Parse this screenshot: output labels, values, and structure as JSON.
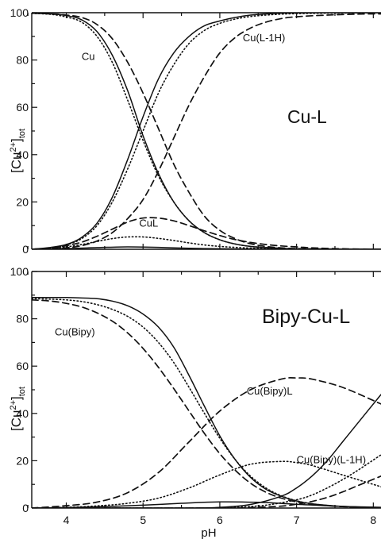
{
  "chart_data": [
    {
      "type": "line",
      "panel": "Cu-L",
      "title": "Cu-L",
      "xlabel": "",
      "ylabel": "[Cu2+]tot",
      "ylabel_main": "[Cu",
      "ylabel_sup": "2+",
      "ylabel_close": "]",
      "ylabel_sub": "tot",
      "xlim": [
        3.55,
        8.1
      ],
      "ylim": [
        0,
        100
      ],
      "yticks": [
        0,
        20,
        40,
        60,
        80,
        100
      ],
      "ytick_labels": [
        "0",
        "20",
        "40",
        "60",
        "80",
        "100"
      ],
      "xticks": [
        4,
        5,
        6,
        7,
        8
      ],
      "annotations": [
        {
          "text": "Cu",
          "x": 4.2,
          "y": 80
        },
        {
          "text": "Cu(L-1H)",
          "x": 6.3,
          "y": 88
        },
        {
          "text": "CuL",
          "x": 4.95,
          "y": 9.5
        }
      ],
      "series": [
        {
          "label": "Cu",
          "style": "solid",
          "x": [
            3.55,
            3.8,
            4.0,
            4.2,
            4.4,
            4.6,
            4.8,
            5.0,
            5.2,
            5.4,
            5.6,
            5.8,
            6.0,
            6.2,
            6.4,
            6.6,
            6.8,
            7.0,
            7.4,
            8.1
          ],
          "y": [
            99.8,
            99.5,
            98.8,
            97,
            92,
            82,
            67,
            48,
            32,
            20,
            12,
            7,
            4,
            2.2,
            1.2,
            0.7,
            0.4,
            0.2,
            0.1,
            0
          ]
        },
        {
          "label": "Cu",
          "style": "dotted",
          "x": [
            3.55,
            3.8,
            4.0,
            4.2,
            4.4,
            4.6,
            4.8,
            5.0,
            5.2,
            5.4,
            5.6,
            5.8,
            6.0,
            6.2,
            6.4,
            6.6,
            6.8,
            7.0,
            7.4,
            8.1
          ],
          "y": [
            99.7,
            99.3,
            98.2,
            96,
            90,
            79,
            63,
            46,
            31,
            20,
            12,
            7,
            4,
            2.2,
            1.2,
            0.7,
            0.4,
            0.2,
            0.1,
            0
          ]
        },
        {
          "label": "Cu",
          "style": "dashed",
          "x": [
            3.55,
            3.8,
            4.0,
            4.2,
            4.4,
            4.6,
            4.8,
            5.0,
            5.2,
            5.4,
            5.6,
            5.8,
            6.0,
            6.2,
            6.4,
            6.6,
            6.8,
            7.0,
            7.4,
            8.1
          ],
          "y": [
            99.8,
            99.5,
            99,
            98,
            95,
            89,
            79,
            66,
            51,
            36,
            24,
            14,
            8,
            4.5,
            2.3,
            1.2,
            0.6,
            0.3,
            0.1,
            0
          ]
        },
        {
          "label": "Cu(L-1H)",
          "style": "solid",
          "x": [
            3.55,
            3.8,
            4.0,
            4.2,
            4.4,
            4.6,
            4.8,
            5.0,
            5.2,
            5.4,
            5.6,
            5.8,
            6.0,
            6.2,
            6.4,
            6.6,
            6.8,
            7.0,
            7.4,
            7.8,
            8.1
          ],
          "y": [
            0,
            0.8,
            2,
            5,
            11,
            22,
            38,
            56,
            72,
            83,
            90,
            94.5,
            96.5,
            98,
            99,
            99.5,
            99.8,
            99.9,
            100,
            100,
            100
          ]
        },
        {
          "label": "Cu(L-1H)",
          "style": "dotted",
          "x": [
            3.55,
            3.8,
            4.0,
            4.2,
            4.4,
            4.6,
            4.8,
            5.0,
            5.2,
            5.4,
            5.6,
            5.8,
            6.0,
            6.2,
            6.4,
            6.6,
            6.8,
            7.0,
            7.4,
            7.8,
            8.1
          ],
          "y": [
            0,
            0.6,
            1.8,
            4.5,
            10,
            20,
            34,
            50,
            66,
            78,
            87,
            92.5,
            95.5,
            97.3,
            98.4,
            99,
            99.4,
            99.6,
            99.8,
            99.9,
            100
          ]
        },
        {
          "label": "Cu(L-1H)",
          "style": "dashed",
          "x": [
            3.55,
            3.8,
            4.0,
            4.2,
            4.4,
            4.6,
            4.8,
            5.0,
            5.2,
            5.4,
            5.6,
            5.8,
            6.0,
            6.2,
            6.4,
            6.6,
            6.8,
            7.0,
            7.4,
            7.8,
            8.1
          ],
          "y": [
            0,
            0.2,
            0.6,
            1.5,
            3.5,
            7,
            13,
            21,
            33,
            47,
            61,
            73,
            83,
            89.5,
            93.5,
            96,
            97.5,
            98.3,
            99,
            99.4,
            99.5
          ]
        },
        {
          "label": "CuL",
          "style": "solid",
          "x": [
            3.55,
            4.0,
            4.4,
            4.8,
            5.2,
            5.6,
            6.0,
            6.6,
            7.2,
            8.1
          ],
          "y": [
            0,
            0.3,
            0.7,
            1,
            0.8,
            0.4,
            0.2,
            0.05,
            0,
            0
          ]
        },
        {
          "label": "CuL",
          "style": "dotted",
          "x": [
            3.55,
            3.8,
            4.0,
            4.2,
            4.4,
            4.6,
            4.8,
            5.0,
            5.2,
            5.4,
            5.6,
            5.8,
            6.0,
            6.2,
            6.4,
            6.6,
            6.8,
            7.0,
            7.4,
            8.1
          ],
          "y": [
            0,
            0.3,
            1,
            2,
            3.3,
            4.5,
            5.2,
            5.2,
            4.6,
            3.7,
            2.7,
            1.8,
            1.2,
            0.8,
            0.5,
            0.3,
            0.2,
            0.1,
            0,
            0
          ]
        },
        {
          "label": "CuL",
          "style": "dashed",
          "x": [
            3.55,
            3.8,
            4.0,
            4.2,
            4.4,
            4.6,
            4.8,
            5.0,
            5.2,
            5.4,
            5.6,
            5.8,
            6.0,
            6.2,
            6.4,
            6.6,
            6.8,
            7.0,
            7.2,
            7.6,
            8.1
          ],
          "y": [
            0,
            0.5,
            1.5,
            3,
            5.5,
            8.5,
            11.5,
            13.2,
            13.2,
            12,
            10,
            7.8,
            5.8,
            4.1,
            2.9,
            2,
            1.4,
            1,
            0.6,
            0.2,
            0
          ]
        }
      ]
    },
    {
      "type": "line",
      "panel": "Bipy-Cu-L",
      "title": "Bipy-Cu-L",
      "xlabel": "pH",
      "ylabel": "[Cu2+]tot",
      "ylabel_main": "[Cu",
      "ylabel_sup": "2+",
      "ylabel_close": "]",
      "ylabel_sub": "tot",
      "xlim": [
        3.55,
        8.1
      ],
      "ylim": [
        0,
        100
      ],
      "yticks": [
        0,
        20,
        40,
        60,
        80,
        100
      ],
      "ytick_labels": [
        "0",
        "20",
        "40",
        "60",
        "80",
        "100"
      ],
      "xticks": [
        4,
        5,
        6,
        7,
        8
      ],
      "xtick_labels": [
        "4",
        "5",
        "6",
        "7",
        "8"
      ],
      "annotations": [
        {
          "text": "Cu(Bipy)",
          "x": 3.85,
          "y": 73
        },
        {
          "text": "Cu(Bipy)L",
          "x": 6.35,
          "y": 48
        },
        {
          "text": "Cu(Bipy)(L-1H)",
          "x": 7.0,
          "y": 19
        }
      ],
      "series": [
        {
          "label": "Cu(Bipy)",
          "style": "solid",
          "x": [
            3.55,
            3.8,
            4.0,
            4.2,
            4.4,
            4.6,
            4.8,
            5.0,
            5.2,
            5.4,
            5.6,
            5.8,
            6.0,
            6.2,
            6.4,
            6.6,
            6.8,
            7.0,
            7.2,
            7.6,
            8.1
          ],
          "y": [
            89,
            89,
            89,
            88.8,
            88.5,
            87.5,
            85.5,
            82,
            76.5,
            68,
            56,
            43,
            30.5,
            20.5,
            13,
            8,
            5,
            3,
            1.8,
            0.7,
            0.2
          ]
        },
        {
          "label": "Cu(Bipy)",
          "style": "dotted",
          "x": [
            3.55,
            3.8,
            4.0,
            4.2,
            4.4,
            4.6,
            4.8,
            5.0,
            5.2,
            5.4,
            5.6,
            5.8,
            6.0,
            6.2,
            6.4,
            6.6,
            6.8,
            7.0,
            7.2,
            7.6,
            8.1
          ],
          "y": [
            88.5,
            88.3,
            88,
            87.3,
            86,
            84,
            81,
            76.5,
            70,
            61.5,
            51,
            40,
            29.5,
            20.5,
            13.5,
            8.5,
            5.2,
            3.1,
            1.8,
            0.6,
            0.2
          ]
        },
        {
          "label": "Cu(Bipy)",
          "style": "dashed",
          "x": [
            3.55,
            3.8,
            4.0,
            4.2,
            4.4,
            4.6,
            4.8,
            5.0,
            5.2,
            5.4,
            5.6,
            5.8,
            6.0,
            6.2,
            6.4,
            6.6,
            6.8,
            7.0,
            7.2,
            7.6,
            8.1
          ],
          "y": [
            88,
            87.5,
            86.5,
            85,
            82.5,
            79,
            74,
            67.5,
            59.5,
            50.5,
            41,
            31.5,
            23,
            16,
            10.5,
            6.7,
            4.2,
            2.6,
            1.6,
            0.6,
            0.2
          ]
        },
        {
          "label": "Cu(Bipy)L",
          "style": "solid",
          "x": [
            3.55,
            4.0,
            4.5,
            5.0,
            5.5,
            6.0,
            6.5,
            7.0,
            7.5,
            8.1
          ],
          "y": [
            0,
            0.2,
            0.6,
            1.2,
            2,
            2.6,
            2.4,
            1.6,
            0.8,
            0.3
          ]
        },
        {
          "label": "Cu(Bipy)L",
          "style": "dotted",
          "x": [
            3.55,
            4.0,
            4.4,
            4.8,
            5.2,
            5.6,
            6.0,
            6.4,
            6.8,
            7.0,
            7.2,
            7.6,
            8.1
          ],
          "y": [
            0,
            0.3,
            0.9,
            2,
            4.2,
            8.5,
            14,
            18.5,
            19.7,
            19.2,
            18,
            14,
            9
          ]
        },
        {
          "label": "Cu(Bipy)L",
          "style": "dashed",
          "x": [
            3.55,
            4.0,
            4.4,
            4.8,
            5.2,
            5.6,
            6.0,
            6.4,
            6.8,
            7.0,
            7.2,
            7.6,
            8.1
          ],
          "y": [
            0,
            1,
            2.5,
            6.5,
            15,
            28,
            41,
            50,
            54.5,
            55,
            54.5,
            51,
            44
          ]
        },
        {
          "label": "Cu(Bipy)(L-1H)",
          "style": "solid",
          "x": [
            3.55,
            5.5,
            6.0,
            6.4,
            6.8,
            7.0,
            7.2,
            7.4,
            7.6,
            7.8,
            8.1
          ],
          "y": [
            0,
            0,
            0.3,
            1.5,
            5,
            8.5,
            13.5,
            20,
            28,
            36,
            48
          ]
        },
        {
          "label": "Cu(Bipy)(L-1H)",
          "style": "dotted",
          "x": [
            3.55,
            5.8,
            6.2,
            6.6,
            7.0,
            7.2,
            7.4,
            7.6,
            7.8,
            8.1
          ],
          "y": [
            0,
            0,
            0.3,
            1.2,
            3.5,
            5.5,
            8.5,
            12,
            16,
            22.5
          ]
        },
        {
          "label": "Cu(Bipy)(L-1H)",
          "style": "dashed",
          "x": [
            3.55,
            6.0,
            6.4,
            6.8,
            7.0,
            7.2,
            7.4,
            7.6,
            7.8,
            8.1
          ],
          "y": [
            0,
            0,
            0.2,
            0.8,
            1.6,
            2.8,
            4.5,
            6.8,
            9.5,
            13.5
          ]
        }
      ]
    }
  ]
}
